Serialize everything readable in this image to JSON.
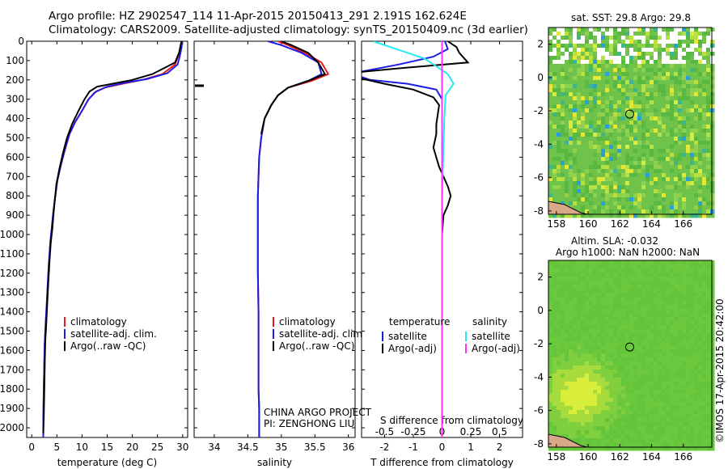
{
  "header": {
    "line1": "Argo profile: HZ 2902547_114 11-Apr-2015 20150413_291 2.191S 162.624E",
    "line2": "Climatology: CARS2009. Satellite-adjusted climatology: synTS_20150409.nc (3d earlier)"
  },
  "colors": {
    "climatology": "#e41a1c",
    "satellite": "#1c1ce6",
    "argo": "#000000",
    "sal_satellite": "#28e8f0",
    "sal_argo": "#ff33ff"
  },
  "annotations": {
    "project": "CHINA ARGO PROJECT",
    "pi": "PI: ZENGHONG LIU",
    "watermark": "©IMOS 17-Apr-2015 20:42:00",
    "sst_title": "sat. SST: 29.8 Argo: 29.8",
    "sla_title1": "Altim. SLA: -0.032",
    "sla_title2": "Argo h1000: NaN h2000: NaN"
  },
  "chart_data": [
    {
      "id": "temperature",
      "type": "line",
      "xlabel": "temperature (deg C)",
      "xlim": [
        -1,
        31
      ],
      "ylim": [
        2050,
        0
      ],
      "xticks": [
        0,
        5,
        10,
        15,
        20,
        25,
        30
      ],
      "yticks": [
        0,
        100,
        200,
        300,
        400,
        500,
        600,
        700,
        800,
        900,
        1000,
        1100,
        1200,
        1300,
        1400,
        1500,
        1600,
        1700,
        1800,
        1900,
        2000
      ],
      "legend": [
        "climatology",
        "satellite-adj. clim.",
        "Argo(..raw -QC)"
      ],
      "series": [
        {
          "name": "climatology",
          "x": [
            29.8,
            29.6,
            29.2,
            28.5,
            26,
            22,
            18,
            14.5,
            12.5,
            11.3,
            10,
            8.6,
            7.5,
            6.6,
            5.8,
            5.1,
            4.7,
            4.3,
            4.0,
            3.7,
            3.4,
            3.2,
            3.0,
            2.8,
            2.6,
            2.5,
            2.4,
            2.3,
            2.3
          ],
          "y": [
            0,
            30,
            70,
            120,
            170,
            200,
            220,
            240,
            265,
            300,
            360,
            420,
            480,
            560,
            640,
            720,
            800,
            880,
            960,
            1040,
            1150,
            1250,
            1350,
            1450,
            1550,
            1650,
            1800,
            1950,
            2050
          ]
        },
        {
          "name": "satellite-adj. clim.",
          "x": [
            29.9,
            29.8,
            29.5,
            29.0,
            27,
            23,
            18.5,
            15,
            12.8,
            11.3,
            10,
            8.6,
            7.5,
            6.6,
            5.8,
            5.1,
            4.7,
            4.3,
            4.0,
            3.7,
            3.4,
            3.2,
            3.0,
            2.8,
            2.6,
            2.5,
            2.4,
            2.3,
            2.3
          ],
          "y": [
            0,
            30,
            70,
            120,
            165,
            195,
            215,
            235,
            260,
            300,
            360,
            420,
            480,
            560,
            640,
            720,
            800,
            880,
            960,
            1040,
            1150,
            1250,
            1350,
            1450,
            1550,
            1650,
            1800,
            1950,
            2050
          ]
        },
        {
          "name": "Argo(..raw -QC)",
          "x": [
            29.8,
            29.6,
            29.3,
            28.5,
            24,
            20,
            16,
            13,
            11.5,
            10.5,
            9.3,
            8.0,
            7.0,
            6.2,
            5.5,
            4.9,
            4.6,
            4.3,
            4.1,
            3.8,
            3.5,
            3.3,
            3.1,
            2.9,
            2.7,
            2.6,
            2.5,
            2.4,
            2.3
          ],
          "y": [
            0,
            20,
            60,
            110,
            170,
            200,
            220,
            235,
            260,
            300,
            360,
            430,
            500,
            580,
            660,
            740,
            820,
            900,
            970,
            1040,
            1150,
            1250,
            1350,
            1450,
            1550,
            1650,
            1800,
            1950,
            2030
          ]
        }
      ]
    },
    {
      "id": "salinity",
      "type": "line",
      "xlabel": "salinity",
      "xlim": [
        33.7,
        36.1
      ],
      "ylim": [
        2050,
        0
      ],
      "xticks": [
        34,
        34.5,
        35,
        35.5,
        36
      ],
      "legend": [
        "climatology",
        "satellite-adj. clim.",
        "Argo(..raw -QC)"
      ],
      "series": [
        {
          "name": "climatology",
          "x": [
            34.95,
            35.1,
            35.35,
            35.6,
            35.7,
            35.45,
            35.1,
            34.95,
            34.85,
            34.75,
            34.7,
            34.67,
            34.66,
            34.65,
            34.65,
            34.65,
            34.65,
            34.66,
            34.66,
            34.66,
            34.67,
            34.67,
            34.67
          ],
          "y": [
            0,
            20,
            60,
            110,
            170,
            205,
            240,
            280,
            330,
            400,
            500,
            600,
            700,
            800,
            900,
            1000,
            1200,
            1400,
            1600,
            1800,
            1900,
            2000,
            2050
          ]
        },
        {
          "name": "satellite-adj. clim.",
          "x": [
            34.8,
            35.0,
            35.3,
            35.55,
            35.6,
            35.4,
            35.1,
            34.95,
            34.85,
            34.75,
            34.7,
            34.67,
            34.66,
            34.65,
            34.65,
            34.65,
            34.65,
            34.66,
            34.66,
            34.66,
            34.67,
            34.67,
            34.67
          ],
          "y": [
            0,
            20,
            60,
            110,
            170,
            205,
            240,
            280,
            330,
            400,
            500,
            600,
            700,
            800,
            900,
            1000,
            1200,
            1400,
            1600,
            1800,
            1900,
            2000,
            2050
          ]
        },
        {
          "name": "Argo(..raw -QC)",
          "x": [
            35.0,
            35.15,
            35.4,
            35.55,
            35.65,
            35.4,
            35.1,
            34.95,
            34.85,
            34.75,
            34.7
          ],
          "y": [
            0,
            20,
            60,
            110,
            170,
            205,
            240,
            280,
            330,
            400,
            480
          ]
        }
      ]
    },
    {
      "id": "difference",
      "type": "line",
      "xlabel": "T difference from climatology",
      "xlabel_top": "S difference from climatology",
      "xlim": [
        -2.8,
        2.8
      ],
      "ylim": [
        2050,
        0
      ],
      "xticks": [
        -2,
        -1,
        0,
        1,
        2
      ],
      "xticks_top": [
        -0.5,
        -0.25,
        0,
        0.25,
        0.5
      ],
      "legend_headers": [
        "temperature",
        "salinity"
      ],
      "legend": [
        "satellite",
        "Argo(-adj)",
        "satellite",
        "Argo(-adj)"
      ],
      "series": [
        {
          "name": "T satellite",
          "x": [
            0.1,
            0.2,
            -0.3,
            -1.5,
            -2.9,
            -2.9,
            -2.5,
            -1.2,
            -0.2,
            0.0,
            0.0,
            0.0,
            0.0,
            0.0,
            0.0,
            0.0,
            0.0,
            0.0,
            0.0
          ],
          "y": [
            0,
            40,
            80,
            120,
            160,
            180,
            200,
            220,
            250,
            300,
            400,
            600,
            800,
            1000,
            1200,
            1400,
            1600,
            1800,
            2050
          ]
        },
        {
          "name": "T Argo(-adj)",
          "x": [
            0.2,
            0.5,
            0.6,
            0.9,
            -1.5,
            -2.9,
            -2.9,
            -2.0,
            -1.0,
            -0.3,
            -0.1,
            -0.2,
            -0.2,
            -0.3,
            -0.1,
            0.2,
            0.3,
            0.2,
            0.05,
            0.0,
            0.0,
            0.0,
            0.0
          ],
          "y": [
            0,
            30,
            60,
            110,
            140,
            160,
            190,
            220,
            250,
            290,
            330,
            430,
            480,
            550,
            650,
            750,
            800,
            850,
            900,
            1000,
            1400,
            1800,
            2000
          ]
        },
        {
          "name": "S satellite",
          "x": [
            -0.6,
            -0.4,
            -0.15,
            -0.05,
            0.05,
            0.1,
            0.03,
            0.02,
            0.01,
            0.0,
            0.0,
            0.0,
            0.0,
            0.0
          ],
          "y": [
            0,
            40,
            90,
            130,
            170,
            220,
            280,
            400,
            600,
            800,
            1000,
            1400,
            1800,
            2050
          ]
        },
        {
          "name": "S Argo(-adj)",
          "x": [
            0.0,
            0.0,
            0.0,
            0.0,
            0.0,
            0.0,
            0.0,
            0.0,
            0.0,
            0.0,
            0.0,
            0.0,
            0.0,
            0.0,
            0.0,
            0.0,
            0.0,
            0.0,
            0.0,
            0.0,
            0.0,
            0.0
          ],
          "y": [
            0,
            100,
            200,
            300,
            400,
            500,
            600,
            700,
            800,
            900,
            1000,
            1100,
            1200,
            1300,
            1400,
            1500,
            1600,
            1700,
            1800,
            1900,
            2000,
            2050
          ]
        }
      ]
    },
    {
      "id": "sst_map",
      "type": "heatmap",
      "xlim": [
        157.5,
        167.8
      ],
      "ylim": [
        -8.2,
        3.0
      ],
      "xticks": [
        158,
        160,
        162,
        164,
        166
      ],
      "yticks": [
        2,
        0,
        -2,
        -4,
        -6,
        -8
      ],
      "marker": {
        "lon": 162.624,
        "lat": -2.191
      }
    },
    {
      "id": "sla_map",
      "type": "heatmap",
      "xlim": [
        157.5,
        167.8
      ],
      "ylim": [
        -8.2,
        3.0
      ],
      "xticks": [
        158,
        160,
        162,
        164,
        166
      ],
      "yticks": [
        2,
        0,
        -2,
        -4,
        -6,
        -8
      ],
      "marker": {
        "lon": 162.624,
        "lat": -2.191
      }
    }
  ]
}
